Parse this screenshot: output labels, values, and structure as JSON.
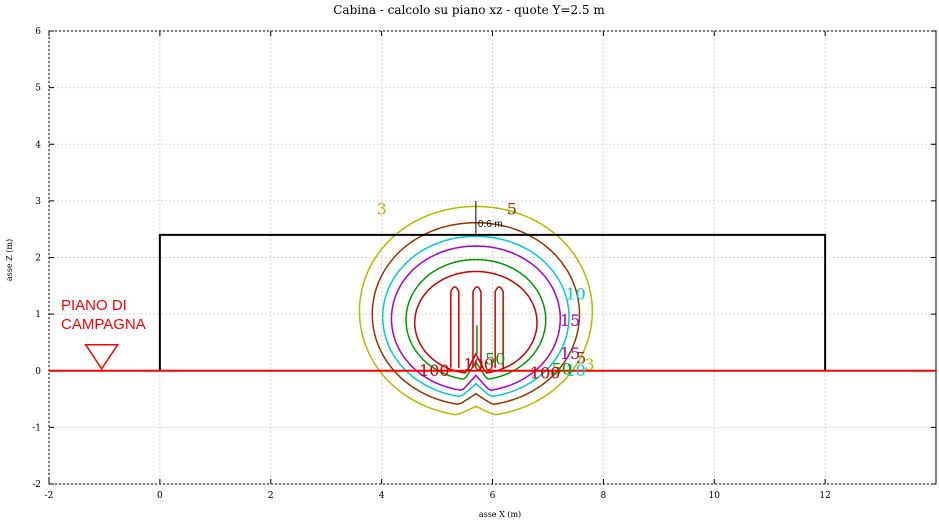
{
  "chart_data": {
    "type": "contour",
    "title": "Cabina  -  calcolo su piano xz  -  quote Y=2.5 m",
    "xlabel": "asse X (m)",
    "ylabel": "asse Z (m)",
    "xlim": [
      -2,
      14
    ],
    "ylim": [
      -2,
      6
    ],
    "x_ticks": [
      "-2",
      "0",
      "2",
      "4",
      "6",
      "8",
      "10",
      "12"
    ],
    "y_ticks": [
      "-2",
      "-1",
      "0",
      "1",
      "2",
      "3",
      "4",
      "5",
      "6"
    ],
    "grid": true,
    "cabin_outline": {
      "x": [
        0,
        0,
        12,
        12
      ],
      "z": [
        0,
        2.4,
        2.4,
        0
      ]
    },
    "ground_line_z": 0,
    "ground_label": [
      "PIANO DI",
      "CAMPAGNA"
    ],
    "ground_marker_x": -1.05,
    "distance_marker": {
      "x": 5.7,
      "z_from": 2.4,
      "z_to": 3.0,
      "label": "0.6 m"
    },
    "contours": [
      {
        "level": "3",
        "color": "#b8b800",
        "cx": 5.7,
        "cy": 1.05,
        "rx": 2.0,
        "ry": 1.95
      },
      {
        "level": "5",
        "color": "#993300",
        "cx": 5.7,
        "cy": 1.0,
        "rx": 1.78,
        "ry": 1.7
      },
      {
        "level": "10",
        "color": "#00cccc",
        "cx": 5.7,
        "cy": 0.95,
        "rx": 1.6,
        "ry": 1.5
      },
      {
        "level": "15",
        "color": "#aa00cc",
        "cx": 5.7,
        "cy": 0.92,
        "rx": 1.45,
        "ry": 1.35
      },
      {
        "level": "50",
        "color": "#009900",
        "cx": 5.7,
        "cy": 0.9,
        "rx": 1.2,
        "ry": 1.12
      },
      {
        "level": "100",
        "color": "#cc0000",
        "cx": 5.7,
        "cy": 0.85,
        "rx": 1.05,
        "ry": 0.95
      }
    ],
    "contour_labels": [
      {
        "text": "3",
        "x": 4.0,
        "z": 2.85,
        "color": "#b8b800"
      },
      {
        "text": "5",
        "x": 6.35,
        "z": 2.85,
        "color": "#993300"
      },
      {
        "text": "10",
        "x": 7.5,
        "z": 1.35,
        "color": "#00cccc"
      },
      {
        "text": "15",
        "x": 7.4,
        "z": 0.88,
        "color": "#aa00cc"
      },
      {
        "text": "15",
        "x": 7.4,
        "z": 0.3,
        "color": "#aa00cc"
      },
      {
        "text": "5",
        "x": 7.6,
        "z": 0.22,
        "color": "#993300"
      },
      {
        "text": "3",
        "x": 7.75,
        "z": 0.1,
        "color": "#b8b800"
      },
      {
        "text": "10",
        "x": 7.5,
        "z": 0.0,
        "color": "#00cccc"
      },
      {
        "text": "50",
        "x": 7.25,
        "z": 0.02,
        "color": "#009900"
      },
      {
        "text": "100",
        "x": 4.95,
        "z": 0.0,
        "color": "#cc0000"
      },
      {
        "text": "100",
        "x": 5.75,
        "z": 0.1,
        "color": "#cc0000"
      },
      {
        "text": "50",
        "x": 6.05,
        "z": 0.2,
        "color": "#009900"
      },
      {
        "text": "100",
        "x": 6.95,
        "z": -0.05,
        "color": "#cc0000"
      }
    ],
    "colors": {
      "ground": "#ff0000",
      "cabin": "#000000",
      "grid": "#d9d9d9"
    }
  }
}
